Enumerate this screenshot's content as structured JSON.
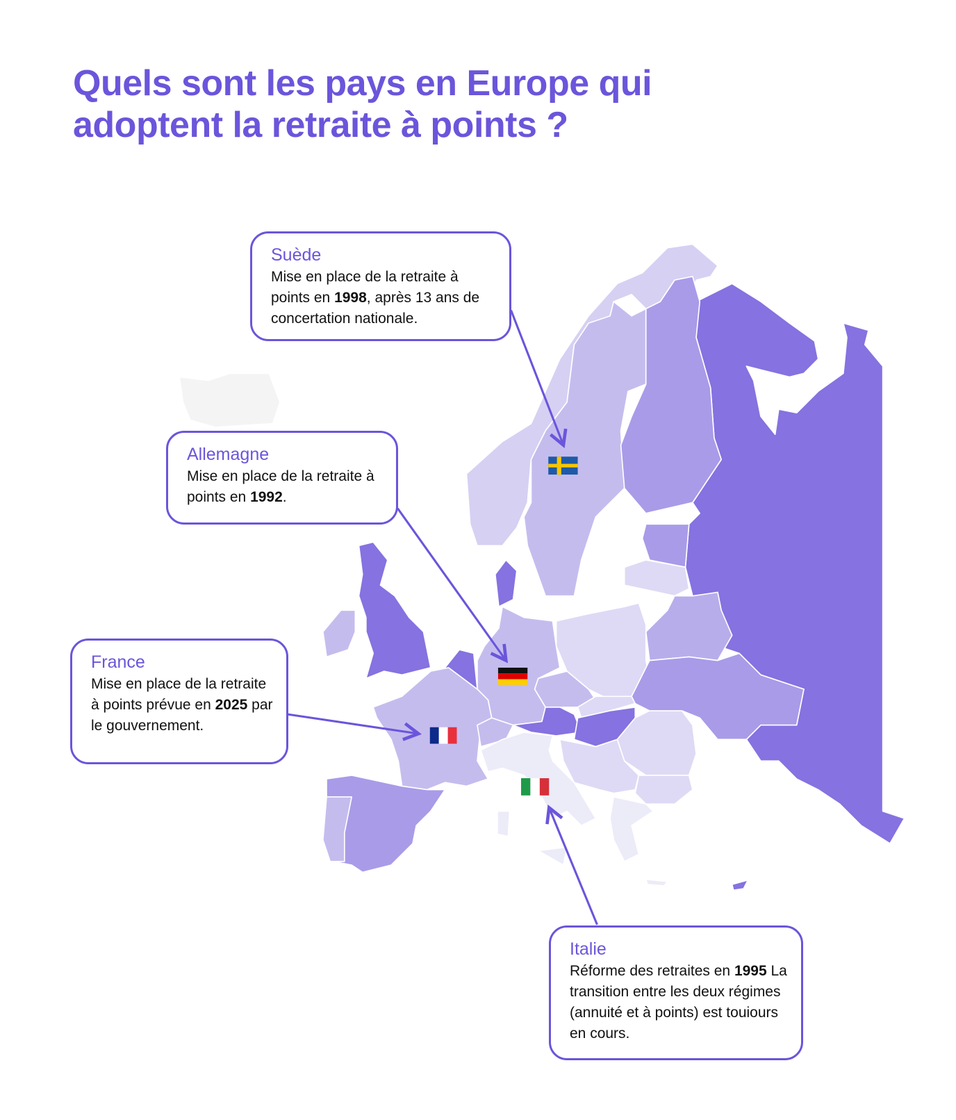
{
  "title": {
    "line1": "Quels sont les pays en Europe qui",
    "line2": "adoptent la retraite à points ?"
  },
  "colors": {
    "accent": "#6b55db",
    "level1": "#8672e0",
    "level2": "#a99be8",
    "level3": "#c5bcee",
    "level4": "#dedaf5",
    "level5": "#ecebf8",
    "non_europe": "#f4f4f4"
  },
  "callouts": {
    "sweden": {
      "name": "Suède",
      "body": [
        "Mise en place de la retraite à points en ",
        "1998",
        ", après 13 ans de concertation nationale."
      ],
      "flag": "sweden-flag"
    },
    "germany": {
      "name": "Allemagne",
      "body": [
        "Mise en place de la retraite à points en ",
        "1992",
        "."
      ],
      "flag": "germany-flag"
    },
    "france": {
      "name": "France",
      "body": [
        "Mise en place de la retraite à points prévue en ",
        "2025",
        " par le gouvernement."
      ],
      "flag": "france-flag"
    },
    "italy": {
      "name": "Italie",
      "body": [
        "Réforme des retraites en ",
        "1995",
        " La transition entre les deux régimes (annuité et à points) est touiours en cours."
      ],
      "flag": "italy-flag"
    }
  }
}
